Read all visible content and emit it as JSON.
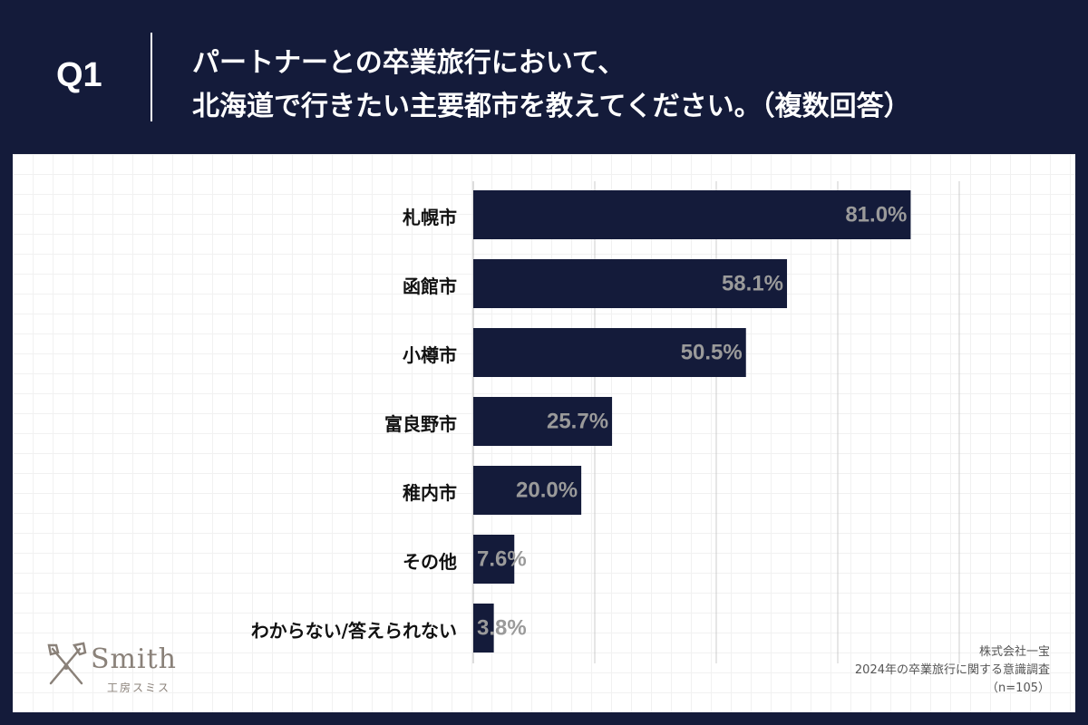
{
  "header": {
    "question_number": "Q1",
    "title_line1": "パートナーとの卒業旅行において、",
    "title_line2": "北海道で行きたい主要都市を教えてください。（複数回答）"
  },
  "chart_data": {
    "type": "bar",
    "orientation": "horizontal",
    "categories": [
      "札幌市",
      "函館市",
      "小樽市",
      "富良野市",
      "稚内市",
      "その他",
      "わからない/答えられない"
    ],
    "values": [
      81.0,
      58.1,
      50.5,
      25.7,
      20.0,
      7.6,
      3.8
    ],
    "value_labels": [
      "81.0%",
      "58.1%",
      "50.5%",
      "25.7%",
      "20.0%",
      "7.6%",
      "3.8%"
    ],
    "xlim": [
      0,
      90
    ],
    "gridlines_at": [
      0,
      22.5,
      45,
      67.5,
      90
    ],
    "bar_color": "#141b3a",
    "label_color": "#9a9a9a",
    "grid": true
  },
  "logo": {
    "name": "Smith",
    "sub": "工房スミス",
    "color": "#8a8179"
  },
  "source": {
    "company": "株式会社一宝",
    "survey": "2024年の卒業旅行に関する意識調査",
    "sample": "（n=105）"
  },
  "colors": {
    "background": "#141b3a",
    "panel": "#ffffff"
  }
}
